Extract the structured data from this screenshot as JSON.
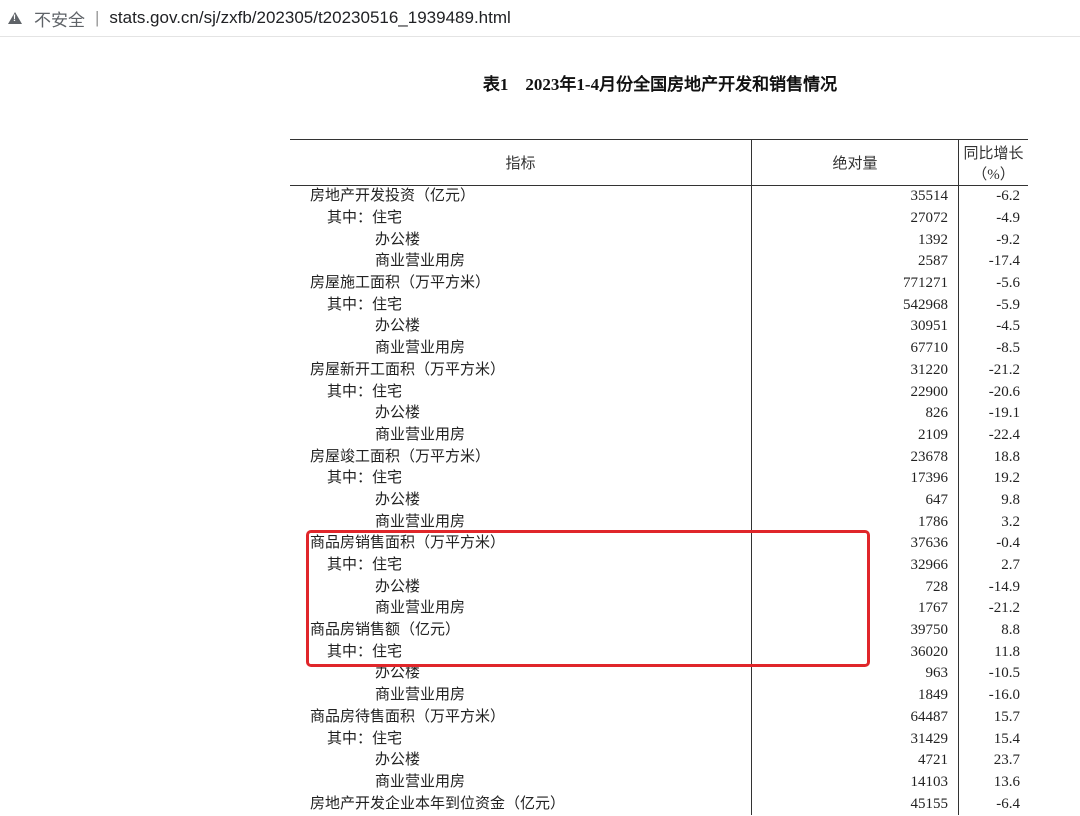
{
  "browser": {
    "security_label": "不安全",
    "url": "stats.gov.cn/sj/zxfb/202305/t20230516_1939489.html"
  },
  "page_title": "表1　2023年1-4月份全国房地产开发和销售情况",
  "table": {
    "headers": [
      "指标",
      "绝对量",
      "同比增长（%）"
    ],
    "rows": [
      {
        "label": "房地产开发投资（亿元）",
        "level": 0,
        "value": "35514",
        "growth": "-6.2"
      },
      {
        "label": "其中：住宅",
        "level": 1,
        "value": "27072",
        "growth": "-4.9"
      },
      {
        "label": "办公楼",
        "level": 2,
        "value": "1392",
        "growth": "-9.2"
      },
      {
        "label": "商业营业用房",
        "level": 2,
        "value": "2587",
        "growth": "-17.4"
      },
      {
        "label": "房屋施工面积（万平方米）",
        "level": 0,
        "value": "771271",
        "growth": "-5.6"
      },
      {
        "label": "其中：住宅",
        "level": 1,
        "value": "542968",
        "growth": "-5.9"
      },
      {
        "label": "办公楼",
        "level": 2,
        "value": "30951",
        "growth": "-4.5"
      },
      {
        "label": "商业营业用房",
        "level": 2,
        "value": "67710",
        "growth": "-8.5"
      },
      {
        "label": "房屋新开工面积（万平方米）",
        "level": 0,
        "value": "31220",
        "growth": "-21.2"
      },
      {
        "label": "其中：住宅",
        "level": 1,
        "value": "22900",
        "growth": "-20.6"
      },
      {
        "label": "办公楼",
        "level": 2,
        "value": "826",
        "growth": "-19.1"
      },
      {
        "label": "商业营业用房",
        "level": 2,
        "value": "2109",
        "growth": "-22.4"
      },
      {
        "label": "房屋竣工面积（万平方米）",
        "level": 0,
        "value": "23678",
        "growth": "18.8"
      },
      {
        "label": "其中：住宅",
        "level": 1,
        "value": "17396",
        "growth": "19.2"
      },
      {
        "label": "办公楼",
        "level": 2,
        "value": "647",
        "growth": "9.8"
      },
      {
        "label": "商业营业用房",
        "level": 2,
        "value": "1786",
        "growth": "3.2"
      },
      {
        "label": "商品房销售面积（万平方米）",
        "level": 0,
        "value": "37636",
        "growth": "-0.4"
      },
      {
        "label": "其中：住宅",
        "level": 1,
        "value": "32966",
        "growth": "2.7"
      },
      {
        "label": "办公楼",
        "level": 2,
        "value": "728",
        "growth": "-14.9"
      },
      {
        "label": "商业营业用房",
        "level": 2,
        "value": "1767",
        "growth": "-21.2"
      },
      {
        "label": "商品房销售额（亿元）",
        "level": 0,
        "value": "39750",
        "growth": "8.8"
      },
      {
        "label": "其中：住宅",
        "level": 1,
        "value": "36020",
        "growth": "11.8"
      },
      {
        "label": "办公楼",
        "level": 2,
        "value": "963",
        "growth": "-10.5"
      },
      {
        "label": "商业营业用房",
        "level": 2,
        "value": "1849",
        "growth": "-16.0"
      },
      {
        "label": "商品房待售面积（万平方米）",
        "level": 0,
        "value": "64487",
        "growth": "15.7"
      },
      {
        "label": "其中：住宅",
        "level": 1,
        "value": "31429",
        "growth": "15.4"
      },
      {
        "label": "办公楼",
        "level": 2,
        "value": "4721",
        "growth": "23.7"
      },
      {
        "label": "商业营业用房",
        "level": 2,
        "value": "14103",
        "growth": "13.6"
      },
      {
        "label": "房地产开发企业本年到位资金（亿元）",
        "level": 0,
        "value": "45155",
        "growth": "-6.4"
      }
    ]
  },
  "highlight": {
    "color": "#e0262a"
  }
}
